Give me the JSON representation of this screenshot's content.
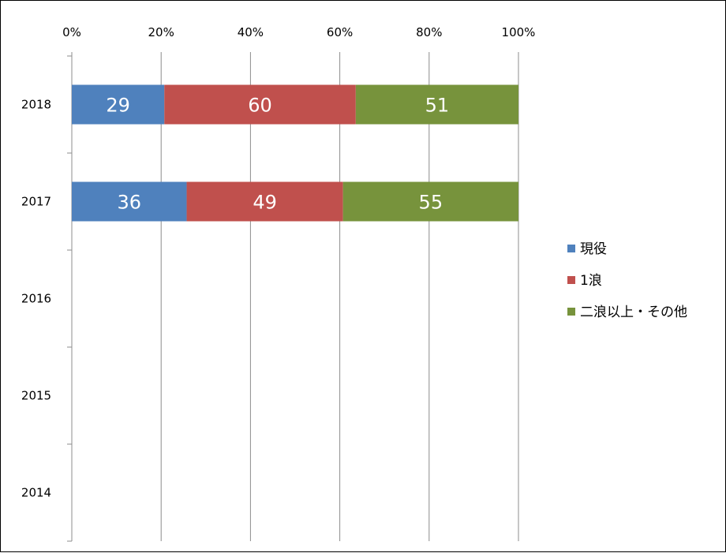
{
  "chart_data": {
    "type": "bar",
    "orientation": "horizontal",
    "stacked": "percent",
    "categories": [
      "2018",
      "2017",
      "2016",
      "2015",
      "2014"
    ],
    "series": [
      {
        "name": "現役",
        "color": "#4F81BD",
        "values": [
          29,
          36,
          null,
          null,
          null
        ]
      },
      {
        "name": "1浪",
        "color": "#C0504D",
        "values": [
          60,
          49,
          null,
          null,
          null
        ]
      },
      {
        "name": "二浪以上・その他",
        "color": "#77933C",
        "values": [
          51,
          55,
          null,
          null,
          null
        ]
      }
    ],
    "xaxis": {
      "ticks": [
        "0%",
        "20%",
        "40%",
        "60%",
        "80%",
        "100%"
      ],
      "position": "top",
      "range": [
        0,
        100
      ]
    },
    "grid": true,
    "legend_position": "right",
    "data_labels": true
  }
}
